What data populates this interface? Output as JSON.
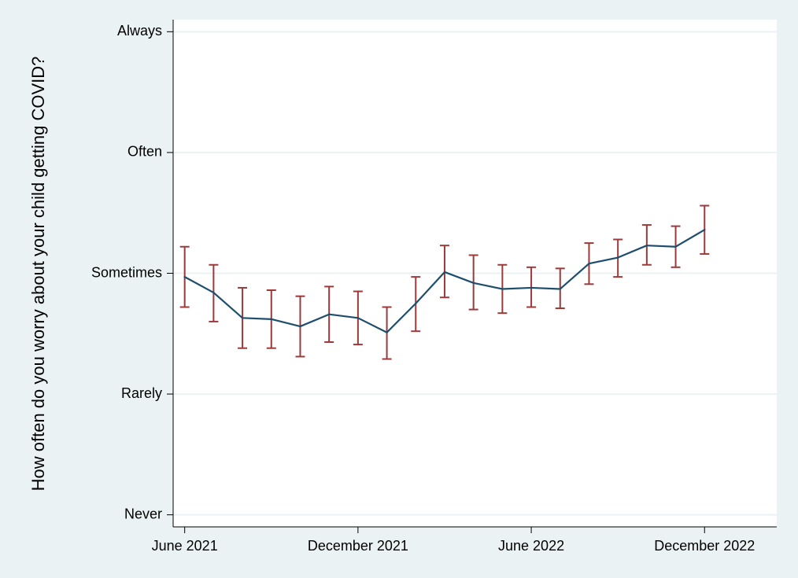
{
  "chart_data": {
    "type": "line",
    "title": "",
    "xlabel": "",
    "ylabel": "How often do you worry about your child getting COVID?",
    "x_ticks": [
      {
        "label": "June 2021",
        "x": 0
      },
      {
        "label": "December 2021",
        "x": 6
      },
      {
        "label": "June 2022",
        "x": 12
      },
      {
        "label": "December 2022",
        "x": 18
      }
    ],
    "y_ticks": [
      {
        "label": "Never",
        "y": 1
      },
      {
        "label": "Rarely",
        "y": 2
      },
      {
        "label": "Sometimes",
        "y": 3
      },
      {
        "label": "Often",
        "y": 4
      },
      {
        "label": "Always",
        "y": 5
      }
    ],
    "xlim": [
      -0.4,
      20.5
    ],
    "ylim": [
      0.9,
      5.1
    ],
    "grid": true,
    "legend": "none",
    "series": [
      {
        "x": [
          0,
          1,
          2,
          3,
          4,
          5,
          6,
          7,
          8,
          9,
          10,
          11,
          12,
          13,
          14,
          15,
          16,
          17,
          18
        ],
        "values": [
          2.97,
          2.84,
          2.63,
          2.62,
          2.56,
          2.66,
          2.63,
          2.51,
          2.75,
          3.01,
          2.92,
          2.87,
          2.88,
          2.87,
          3.08,
          3.13,
          3.23,
          3.22,
          3.36
        ],
        "error_low": [
          2.72,
          2.6,
          2.38,
          2.38,
          2.31,
          2.43,
          2.41,
          2.29,
          2.52,
          2.8,
          2.7,
          2.67,
          2.72,
          2.71,
          2.91,
          2.97,
          3.07,
          3.05,
          3.16
        ],
        "error_high": [
          3.22,
          3.07,
          2.88,
          2.86,
          2.81,
          2.89,
          2.85,
          2.72,
          2.97,
          3.23,
          3.15,
          3.07,
          3.05,
          3.04,
          3.25,
          3.28,
          3.4,
          3.39,
          3.56
        ],
        "line_color": "#1f4e6d",
        "error_color": "#9c3a3a"
      }
    ],
    "colors": {
      "background": "#eaf2f3",
      "plot_area": "#ffffff",
      "grid": "#eaf2f3",
      "axis": "#000000"
    }
  }
}
